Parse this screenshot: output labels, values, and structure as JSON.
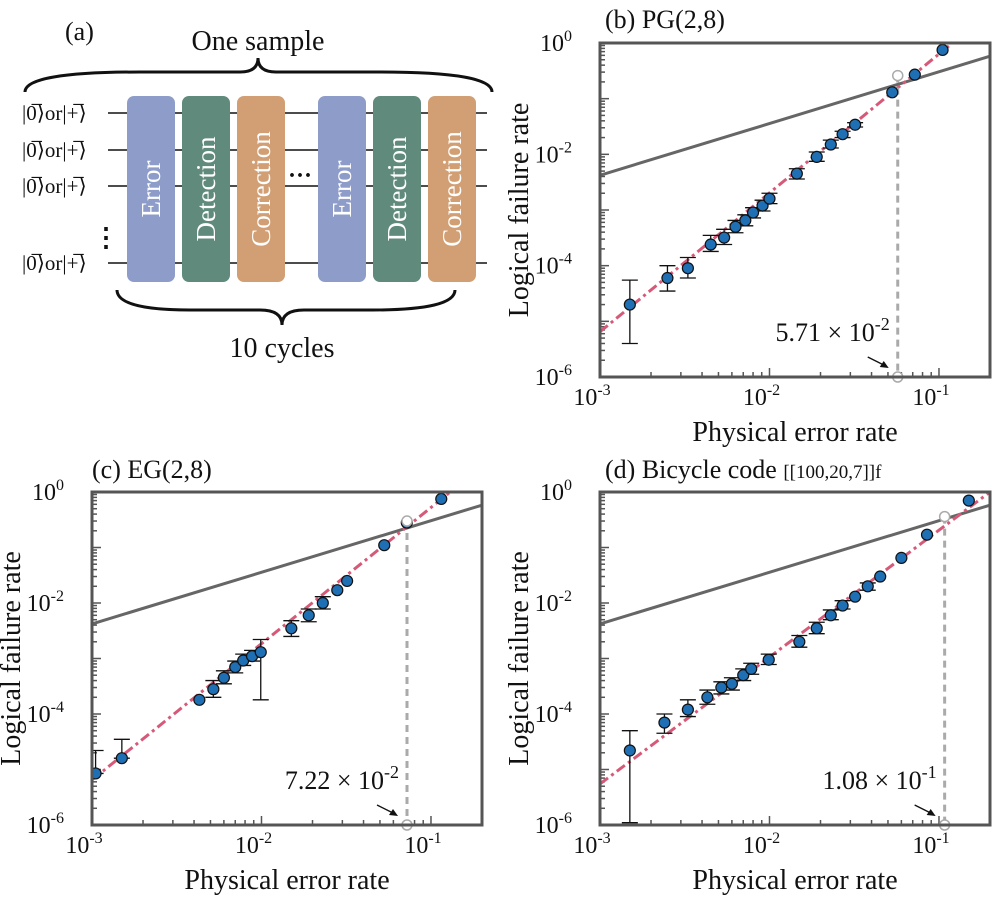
{
  "panel_a": {
    "label": "(a)",
    "top_caption": "One sample",
    "bottom_caption": "10 cycles",
    "row_labels": [
      "|0̅⟩or|+̅⟩",
      "|0̅⟩or|+̅⟩",
      "|0̅⟩or|+̅⟩",
      "|0̅⟩or|+̅⟩"
    ],
    "blocks": [
      "Error",
      "Detection",
      "Correction",
      "Error",
      "Detection",
      "Correction"
    ],
    "ellipsis_h": "···",
    "ellipsis_v": "⋮",
    "colors": {
      "error": "#8e9cc9",
      "detection": "#5f8a7c",
      "correction": "#d19f73"
    }
  },
  "colors": {
    "points": "#1f6fb4",
    "fit": "#d65a78",
    "bound": "#666666",
    "threshold_line": "#aaaaaa"
  },
  "chart_data": [
    {
      "type": "scatter",
      "panel_label": "(b)",
      "title": "PG(2,8)",
      "xlabel": "Physical error rate",
      "ylabel": "Logical failure rate",
      "x_scale": "log",
      "y_scale": "log",
      "xlim": [
        0.001,
        0.2
      ],
      "ylim": [
        1e-06,
        1
      ],
      "x_ticks": [
        "10^-3",
        "10^-2",
        "10^-1"
      ],
      "y_ticks": [
        "10^-6",
        "10^-4",
        "10^-2",
        "10^0"
      ],
      "points": [
        {
          "x": 0.0015,
          "y": 2e-05,
          "ylow": 4e-06,
          "yhigh": 5.5e-05
        },
        {
          "x": 0.0025,
          "y": 6e-05,
          "ylow": 3.5e-05,
          "yhigh": 0.0001
        },
        {
          "x": 0.0033,
          "y": 9e-05,
          "ylow": 6e-05,
          "yhigh": 0.00014
        },
        {
          "x": 0.0045,
          "y": 0.00024,
          "ylow": 0.00018,
          "yhigh": 0.00035
        },
        {
          "x": 0.0054,
          "y": 0.00032,
          "ylow": 0.00024,
          "yhigh": 0.00045
        },
        {
          "x": 0.0063,
          "y": 0.0005,
          "ylow": 0.00039,
          "yhigh": 0.00065
        },
        {
          "x": 0.0072,
          "y": 0.00065,
          "ylow": 0.00052,
          "yhigh": 0.00082
        },
        {
          "x": 0.008,
          "y": 0.0009,
          "ylow": 0.00072,
          "yhigh": 0.0011
        },
        {
          "x": 0.0091,
          "y": 0.0012,
          "ylow": 0.00096,
          "yhigh": 0.0015
        },
        {
          "x": 0.01,
          "y": 0.0016,
          "ylow": 0.0013,
          "yhigh": 0.002
        },
        {
          "x": 0.0145,
          "y": 0.0045,
          "ylow": 0.0036,
          "yhigh": 0.0055
        },
        {
          "x": 0.019,
          "y": 0.009,
          "ylow": 0.0075,
          "yhigh": 0.011
        },
        {
          "x": 0.023,
          "y": 0.015,
          "ylow": 0.013,
          "yhigh": 0.018
        },
        {
          "x": 0.027,
          "y": 0.023,
          "ylow": 0.02,
          "yhigh": 0.026
        },
        {
          "x": 0.032,
          "y": 0.034,
          "ylow": 0.031,
          "yhigh": 0.037
        },
        {
          "x": 0.053,
          "y": 0.13,
          "ylow": 0.13,
          "yhigh": 0.13
        },
        {
          "x": 0.072,
          "y": 0.27,
          "ylow": 0.27,
          "yhigh": 0.27
        },
        {
          "x": 0.105,
          "y": 0.75,
          "ylow": 0.75,
          "yhigh": 0.75
        }
      ],
      "fit_line": {
        "x1": 0.001,
        "y1": 6.5e-06,
        "x2": 0.12,
        "y2": 1.0
      },
      "bound_line": {
        "x1": 0.001,
        "y1": 0.0042,
        "x2": 0.2,
        "y2": 0.58
      },
      "threshold": {
        "x": 0.0571,
        "y_crossing": 0.26,
        "label_mantissa": "5.71 × 10",
        "label_exponent": "-2"
      }
    },
    {
      "type": "scatter",
      "panel_label": "(c)",
      "title": "EG(2,8)",
      "xlabel": "Physical error rate",
      "ylabel": "Logical failure rate",
      "x_scale": "log",
      "y_scale": "log",
      "xlim": [
        0.001,
        0.2
      ],
      "ylim": [
        1e-06,
        1
      ],
      "x_ticks": [
        "10^-3",
        "10^-2",
        "10^-1"
      ],
      "y_ticks": [
        "10^-6",
        "10^-4",
        "10^-2",
        "10^0"
      ],
      "points": [
        {
          "x": 0.00105,
          "y": 8.5e-06,
          "ylow": 8.5e-06,
          "yhigh": 2.2e-05
        },
        {
          "x": 0.0015,
          "y": 1.6e-05,
          "ylow": 1.6e-05,
          "yhigh": 3.5e-05
        },
        {
          "x": 0.0043,
          "y": 0.00018,
          "ylow": 0.00018,
          "yhigh": 0.00018
        },
        {
          "x": 0.0052,
          "y": 0.00028,
          "ylow": 0.0002,
          "yhigh": 0.0004
        },
        {
          "x": 0.006,
          "y": 0.00045,
          "ylow": 0.00035,
          "yhigh": 0.0006
        },
        {
          "x": 0.007,
          "y": 0.0007,
          "ylow": 0.00055,
          "yhigh": 0.0009
        },
        {
          "x": 0.0078,
          "y": 0.00092,
          "ylow": 0.00075,
          "yhigh": 0.0012
        },
        {
          "x": 0.0088,
          "y": 0.0011,
          "ylow": 0.0009,
          "yhigh": 0.0014
        },
        {
          "x": 0.0099,
          "y": 0.0013,
          "ylow": 0.00018,
          "yhigh": 0.0022
        },
        {
          "x": 0.015,
          "y": 0.0035,
          "ylow": 0.0025,
          "yhigh": 0.0048
        },
        {
          "x": 0.019,
          "y": 0.006,
          "ylow": 0.0046,
          "yhigh": 0.0078
        },
        {
          "x": 0.023,
          "y": 0.01,
          "ylow": 0.0078,
          "yhigh": 0.013
        },
        {
          "x": 0.028,
          "y": 0.017,
          "ylow": 0.017,
          "yhigh": 0.017
        },
        {
          "x": 0.032,
          "y": 0.025,
          "ylow": 0.025,
          "yhigh": 0.025
        },
        {
          "x": 0.053,
          "y": 0.11,
          "ylow": 0.11,
          "yhigh": 0.11
        },
        {
          "x": 0.072,
          "y": 0.28,
          "ylow": 0.28,
          "yhigh": 0.28
        },
        {
          "x": 0.115,
          "y": 0.75,
          "ylow": 0.75,
          "yhigh": 0.75
        }
      ],
      "fit_line": {
        "x1": 0.001,
        "y1": 6.5e-06,
        "x2": 0.13,
        "y2": 1.0
      },
      "bound_line": {
        "x1": 0.001,
        "y1": 0.0042,
        "x2": 0.2,
        "y2": 0.58
      },
      "threshold": {
        "x": 0.0722,
        "y_crossing": 0.3,
        "label_mantissa": "7.22 × 10",
        "label_exponent": "-2"
      }
    },
    {
      "type": "scatter",
      "panel_label": "(d)",
      "title": "Bicycle code",
      "title_suffix": "[[100,20,7]]f",
      "xlabel": "Physical error rate",
      "ylabel": "Logical failure rate",
      "x_scale": "log",
      "y_scale": "log",
      "xlim": [
        0.001,
        0.2
      ],
      "ylim": [
        1e-06,
        1
      ],
      "x_ticks": [
        "10^-3",
        "10^-2",
        "10^-1"
      ],
      "y_ticks": [
        "10^-6",
        "10^-4",
        "10^-2",
        "10^0"
      ],
      "points": [
        {
          "x": 0.0015,
          "y": 2.2e-05,
          "ylow": 1.1e-06,
          "yhigh": 5e-05
        },
        {
          "x": 0.0024,
          "y": 7e-05,
          "ylow": 4.5e-05,
          "yhigh": 0.0001
        },
        {
          "x": 0.0033,
          "y": 0.00012,
          "ylow": 9e-05,
          "yhigh": 0.00018
        },
        {
          "x": 0.0043,
          "y": 0.0002,
          "ylow": 0.00015,
          "yhigh": 0.00027
        },
        {
          "x": 0.0052,
          "y": 0.0003,
          "ylow": 0.00023,
          "yhigh": 0.00038
        },
        {
          "x": 0.006,
          "y": 0.00035,
          "ylow": 0.00027,
          "yhigh": 0.00045
        },
        {
          "x": 0.007,
          "y": 0.0005,
          "ylow": 0.0004,
          "yhigh": 0.00065
        },
        {
          "x": 0.0078,
          "y": 0.00065,
          "ylow": 0.00052,
          "yhigh": 0.00082
        },
        {
          "x": 0.0099,
          "y": 0.00095,
          "ylow": 0.00078,
          "yhigh": 0.0012
        },
        {
          "x": 0.015,
          "y": 0.002,
          "ylow": 0.0016,
          "yhigh": 0.0026
        },
        {
          "x": 0.019,
          "y": 0.0035,
          "ylow": 0.0028,
          "yhigh": 0.0045
        },
        {
          "x": 0.023,
          "y": 0.006,
          "ylow": 0.005,
          "yhigh": 0.0075
        },
        {
          "x": 0.027,
          "y": 0.009,
          "ylow": 0.0078,
          "yhigh": 0.011
        },
        {
          "x": 0.032,
          "y": 0.013,
          "ylow": 0.013,
          "yhigh": 0.013
        },
        {
          "x": 0.038,
          "y": 0.02,
          "ylow": 0.017,
          "yhigh": 0.023
        },
        {
          "x": 0.045,
          "y": 0.03,
          "ylow": 0.03,
          "yhigh": 0.03
        },
        {
          "x": 0.06,
          "y": 0.065,
          "ylow": 0.065,
          "yhigh": 0.065
        },
        {
          "x": 0.085,
          "y": 0.17,
          "ylow": 0.17,
          "yhigh": 0.17
        },
        {
          "x": 0.15,
          "y": 0.7,
          "ylow": 0.7,
          "yhigh": 0.7
        }
      ],
      "fit_line": {
        "x1": 0.001,
        "y1": 5.5e-06,
        "x2": 0.2,
        "y2": 1.0
      },
      "bound_line": {
        "x1": 0.001,
        "y1": 0.0042,
        "x2": 0.2,
        "y2": 0.58
      },
      "threshold": {
        "x": 0.108,
        "y_crossing": 0.36,
        "label_mantissa": "1.08 × 10",
        "label_exponent": "-1"
      }
    }
  ]
}
